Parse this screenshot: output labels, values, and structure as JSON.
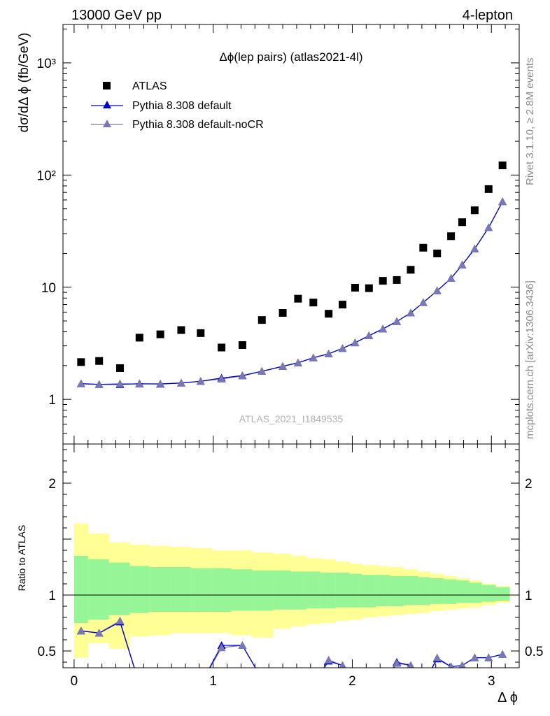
{
  "header": {
    "left": "13000 GeV pp",
    "right": "4-lepton"
  },
  "side_text": {
    "rivet": "Rivet 3.1.10, ≥ 2.8M events",
    "mcplots": "mcplots.cern.ch [arXiv:1306.3436]"
  },
  "chart_data": {
    "type": "scatter",
    "title": "Δϕ(lep pairs) (atlas2021-4l)",
    "analysis_label": "ATLAS_2021_I1849535",
    "xlabel": "Δ ϕ",
    "ylabel": "dσ/dΔ ϕ (fb/GeV)",
    "ratio_ylabel": "Ratio to ATLAS",
    "log_y": true,
    "xlim": [
      -0.08,
      3.2
    ],
    "ylim": [
      0.4,
      2200
    ],
    "ratio_ylim": [
      0.35,
      2.35
    ],
    "x_ticks": [
      "0",
      "1",
      "2",
      "3"
    ],
    "y_ticks": [
      "1",
      "10",
      "10²",
      "10³"
    ],
    "ratio_ticks": [
      "0.5",
      "1",
      "2"
    ],
    "legend_position": "top-left",
    "x": [
      0.05,
      0.18,
      0.33,
      0.47,
      0.62,
      0.77,
      0.91,
      1.06,
      1.21,
      1.35,
      1.5,
      1.61,
      1.72,
      1.83,
      1.93,
      2.02,
      2.12,
      2.22,
      2.32,
      2.42,
      2.51,
      2.61,
      2.71,
      2.79,
      2.88,
      2.98,
      3.08
    ],
    "series": [
      {
        "name": "ATLAS",
        "marker": "square",
        "color": "#000000",
        "values": [
          2.15,
          2.2,
          1.9,
          3.55,
          3.8,
          4.15,
          3.9,
          2.9,
          3.05,
          5.1,
          5.9,
          7.9,
          7.3,
          5.8,
          7.0,
          9.9,
          9.8,
          11.4,
          11.6,
          14.3,
          22.5,
          20.0,
          28.5,
          38.0,
          48.5,
          75.0,
          122.0
        ]
      },
      {
        "name": "Pythia 8.308 default",
        "marker": "triangle",
        "color": "#0000cc",
        "values": [
          1.38,
          1.36,
          1.36,
          1.38,
          1.37,
          1.4,
          1.45,
          1.55,
          1.63,
          1.78,
          1.97,
          2.12,
          2.35,
          2.55,
          2.85,
          3.2,
          3.7,
          4.25,
          4.95,
          5.9,
          7.3,
          9.3,
          12.0,
          15.8,
          22.0,
          34.0,
          58.0
        ]
      },
      {
        "name": "Pythia 8.308 default-noCR",
        "marker": "triangle",
        "color": "#7878b4",
        "values": [
          1.38,
          1.36,
          1.38,
          1.37,
          1.38,
          1.4,
          1.45,
          1.52,
          1.62,
          1.78,
          1.97,
          2.12,
          2.35,
          2.55,
          2.85,
          3.2,
          3.7,
          4.25,
          4.95,
          5.9,
          7.3,
          9.3,
          12.0,
          15.8,
          22.0,
          34.0,
          58.0
        ]
      }
    ],
    "ratio": {
      "reference": 1,
      "band_edges": [
        0.0,
        0.1,
        0.25,
        0.4,
        0.54,
        0.69,
        0.84,
        0.99,
        1.13,
        1.28,
        1.43,
        1.56,
        1.67,
        1.77,
        1.88,
        1.98,
        2.07,
        2.17,
        2.27,
        2.37,
        2.47,
        2.56,
        2.66,
        2.75,
        2.84,
        2.93,
        3.03,
        3.13
      ],
      "band_inner_up": [
        1.35,
        1.32,
        1.29,
        1.26,
        1.25,
        1.25,
        1.24,
        1.24,
        1.23,
        1.22,
        1.22,
        1.21,
        1.21,
        1.2,
        1.2,
        1.19,
        1.18,
        1.18,
        1.17,
        1.17,
        1.16,
        1.15,
        1.14,
        1.13,
        1.11,
        1.09,
        1.07
      ],
      "band_inner_dn": [
        0.75,
        0.78,
        0.82,
        0.84,
        0.85,
        0.85,
        0.85,
        0.85,
        0.86,
        0.86,
        0.87,
        0.87,
        0.88,
        0.88,
        0.89,
        0.89,
        0.89,
        0.9,
        0.9,
        0.91,
        0.91,
        0.92,
        0.92,
        0.93,
        0.93,
        0.94,
        0.95
      ],
      "band_outer_up": [
        1.64,
        1.55,
        1.47,
        1.45,
        1.44,
        1.43,
        1.42,
        1.4,
        1.4,
        1.38,
        1.37,
        1.35,
        1.33,
        1.32,
        1.3,
        1.28,
        1.27,
        1.26,
        1.25,
        1.23,
        1.21,
        1.19,
        1.17,
        1.15,
        1.13,
        1.1,
        1.08
      ],
      "band_outer_dn": [
        0.44,
        0.57,
        0.52,
        0.63,
        0.64,
        0.66,
        0.66,
        0.66,
        0.64,
        0.62,
        0.7,
        0.72,
        0.74,
        0.75,
        0.77,
        0.78,
        0.8,
        0.81,
        0.82,
        0.83,
        0.84,
        0.86,
        0.87,
        0.88,
        0.89,
        0.91,
        0.93
      ],
      "series": [
        {
          "name": "Pythia 8.308 default",
          "color": "#0000cc",
          "values": [
            0.68,
            0.66,
            0.76,
            0.2,
            0.15,
            0.15,
            0.2,
            0.55,
            0.55,
            0.25,
            0.2,
            0.2,
            0.2,
            0.41,
            0.37,
            0.2,
            0.2,
            0.2,
            0.4,
            0.37,
            0.2,
            0.43,
            0.36,
            0.37,
            0.44,
            0.44,
            0.47
          ]
        },
        {
          "name": "Pythia 8.308 default-noCR",
          "color": "#7878b4",
          "values": [
            0.68,
            0.66,
            0.77,
            0.2,
            0.15,
            0.15,
            0.2,
            0.53,
            0.55,
            0.25,
            0.2,
            0.2,
            0.2,
            0.42,
            0.37,
            0.2,
            0.2,
            0.2,
            0.39,
            0.37,
            0.2,
            0.44,
            0.36,
            0.37,
            0.44,
            0.44,
            0.47
          ]
        }
      ]
    }
  }
}
